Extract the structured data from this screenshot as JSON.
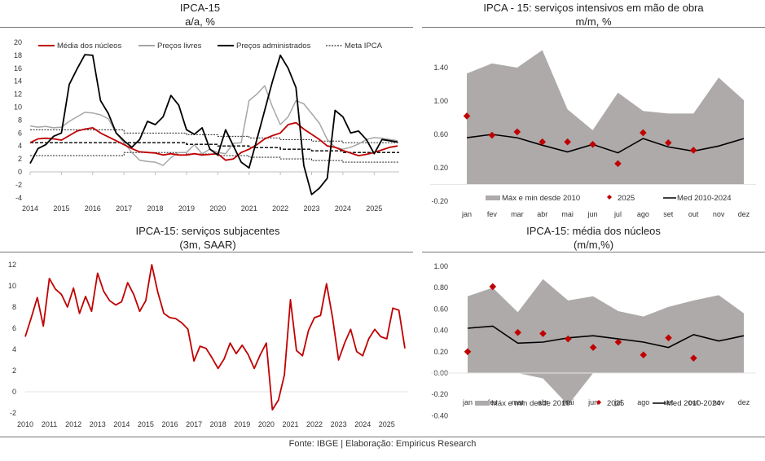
{
  "footer": "Fonte: IBGE | Elaboração: Empiricus Research",
  "colors": {
    "red": "#c00000",
    "gray_line": "#a6a6a6",
    "black": "#000000",
    "band": "#aeaaaa"
  },
  "chart_data": [
    {
      "id": "ipca15_aa",
      "type": "line",
      "title": "IPCA-15",
      "subtitle": "a/a, %",
      "xlabel": "",
      "ylabel": "",
      "ylim": [
        -4,
        20
      ],
      "yticks": [
        20,
        18,
        16,
        14,
        12,
        10,
        8,
        6,
        4,
        2,
        0,
        -2,
        -4
      ],
      "xlim": [
        2014,
        2025.8
      ],
      "xticks": [
        "2014",
        "2015",
        "2016",
        "2017",
        "2018",
        "2019",
        "2020",
        "2021",
        "2022",
        "2023",
        "2024",
        "2025"
      ],
      "legend_position": "top",
      "x": [
        2014.0,
        2014.25,
        2014.5,
        2014.75,
        2015.0,
        2015.25,
        2015.5,
        2015.75,
        2016.0,
        2016.25,
        2016.5,
        2016.75,
        2017.0,
        2017.25,
        2017.5,
        2017.75,
        2018.0,
        2018.25,
        2018.5,
        2018.75,
        2019.0,
        2019.25,
        2019.5,
        2019.75,
        2020.0,
        2020.25,
        2020.5,
        2020.75,
        2021.0,
        2021.25,
        2021.5,
        2021.75,
        2022.0,
        2022.25,
        2022.5,
        2022.75,
        2023.0,
        2023.25,
        2023.5,
        2023.75,
        2024.0,
        2024.25,
        2024.5,
        2024.75,
        2025.0,
        2025.25,
        2025.5,
        2025.75
      ],
      "series": [
        {
          "name": "Média dos núcleos",
          "style": "solid-red",
          "values": [
            4.5,
            5.1,
            5.2,
            5.1,
            4.9,
            5.6,
            6.3,
            6.6,
            6.8,
            6.0,
            5.4,
            4.8,
            4.2,
            3.6,
            3.1,
            3.0,
            2.9,
            2.6,
            2.8,
            2.6,
            2.6,
            2.8,
            2.6,
            2.7,
            2.8,
            1.8,
            2.0,
            3.0,
            3.5,
            4.2,
            5.1,
            5.6,
            6.0,
            7.3,
            7.6,
            6.6,
            5.8,
            5.0,
            4.0,
            3.8,
            3.3,
            2.9,
            2.5,
            2.7,
            3.0,
            3.4,
            3.8,
            4.0
          ]
        },
        {
          "name": "Preços livres",
          "style": "solid-gray",
          "values": [
            7.1,
            6.9,
            7.0,
            6.8,
            6.9,
            7.8,
            8.5,
            9.2,
            9.1,
            8.8,
            8.2,
            6.0,
            4.5,
            3.0,
            1.8,
            1.6,
            1.5,
            1.0,
            2.2,
            3.0,
            3.0,
            4.2,
            2.8,
            3.5,
            3.0,
            2.8,
            4.4,
            4.5,
            11.0,
            12.0,
            13.3,
            10.0,
            7.3,
            8.5,
            11.0,
            10.5,
            9.0,
            7.5,
            5.0,
            3.8,
            3.5,
            3.8,
            4.3,
            5.0,
            5.3,
            5.2,
            5.0,
            4.8
          ]
        },
        {
          "name": "Preços administrados",
          "style": "solid-black",
          "values": [
            1.3,
            3.6,
            4.2,
            5.5,
            6.0,
            13.5,
            15.9,
            18.1,
            18.0,
            11.0,
            9.0,
            6.0,
            4.8,
            3.8,
            5.0,
            7.8,
            7.3,
            8.5,
            11.8,
            10.3,
            6.5,
            5.8,
            6.8,
            3.5,
            2.6,
            6.5,
            4.0,
            1.5,
            0.6,
            5.0,
            9.5,
            14.0,
            18.0,
            16.0,
            13.0,
            1.0,
            -3.5,
            -2.5,
            -1.0,
            9.5,
            8.5,
            6.0,
            6.3,
            5.0,
            2.8,
            5.0,
            4.8,
            4.6
          ]
        },
        {
          "name": "Meta IPCA",
          "style": "dashed-black",
          "center": [
            4.5,
            4.5,
            4.5,
            4.5,
            4.5,
            4.25,
            4.0,
            3.75,
            3.5,
            3.25,
            3.0,
            3.0
          ],
          "upper": [
            6.5,
            6.5,
            6.5,
            6.0,
            6.0,
            5.75,
            5.5,
            5.25,
            5.0,
            4.75,
            4.5,
            4.5
          ],
          "lower": [
            2.5,
            2.5,
            2.5,
            3.0,
            3.0,
            2.75,
            2.5,
            2.25,
            2.0,
            1.75,
            1.5,
            1.5
          ],
          "years": [
            2014,
            2015,
            2016,
            2017,
            2018,
            2019,
            2020,
            2021,
            2022,
            2023,
            2024,
            2025
          ]
        }
      ]
    },
    {
      "id": "servicos_intensivos",
      "type": "area+scatter+line",
      "title": "IPCA - 15: serviços intensivos em mão de obra",
      "subtitle": "m/m, %",
      "ylim": [
        -0.2,
        1.6
      ],
      "yticks": [
        "1.40",
        "1.00",
        "0.60",
        "0.20",
        "-0.20"
      ],
      "ytick_values": [
        1.4,
        1.0,
        0.6,
        0.2,
        -0.2
      ],
      "categories": [
        "jan",
        "fev",
        "mar",
        "abr",
        "mai",
        "jun",
        "jul",
        "ago",
        "set",
        "out",
        "nov",
        "dez"
      ],
      "legend_position": "bottom",
      "series": [
        {
          "name": "Máx e min desde 2010",
          "kind": "band",
          "max": [
            1.33,
            1.45,
            1.4,
            1.61,
            0.9,
            0.65,
            1.1,
            0.88,
            0.85,
            0.85,
            1.28,
            1.01
          ],
          "min": [
            0.0,
            0.0,
            0.0,
            0.0,
            0.0,
            0.0,
            0.0,
            0.0,
            0.0,
            0.0,
            0.0,
            0.0
          ]
        },
        {
          "name": "2025",
          "kind": "scatter",
          "values": [
            0.82,
            0.59,
            0.63,
            0.51,
            0.51,
            0.48,
            0.25,
            0.62,
            0.5,
            0.41,
            null,
            null
          ]
        },
        {
          "name": "Med 2010-2024",
          "kind": "line",
          "values": [
            0.56,
            0.6,
            0.56,
            0.47,
            0.39,
            0.48,
            0.38,
            0.55,
            0.45,
            0.4,
            0.46,
            0.55
          ]
        }
      ]
    },
    {
      "id": "servicos_subjacentes",
      "type": "line",
      "title": "IPCA-15: serviços subjacentes",
      "subtitle": "(3m, SAAR)",
      "ylim": [
        -2,
        12
      ],
      "yticks": [
        12,
        10,
        8,
        6,
        4,
        2,
        0,
        -2
      ],
      "xticks": [
        "2010",
        "2011",
        "2012",
        "2013",
        "2014",
        "2015",
        "2016",
        "2017",
        "2018",
        "2019",
        "2020",
        "2021",
        "2022",
        "2023",
        "2024",
        "2025"
      ],
      "x": [
        2010.0,
        2010.25,
        2010.5,
        2010.75,
        2011.0,
        2011.25,
        2011.5,
        2011.75,
        2012.0,
        2012.25,
        2012.5,
        2012.75,
        2013.0,
        2013.25,
        2013.5,
        2013.75,
        2014.0,
        2014.25,
        2014.5,
        2014.75,
        2015.0,
        2015.25,
        2015.5,
        2015.75,
        2016.0,
        2016.25,
        2016.5,
        2016.75,
        2017.0,
        2017.25,
        2017.5,
        2017.75,
        2018.0,
        2018.25,
        2018.5,
        2018.75,
        2019.0,
        2019.25,
        2019.5,
        2019.75,
        2020.0,
        2020.25,
        2020.5,
        2020.75,
        2021.0,
        2021.25,
        2021.5,
        2021.75,
        2022.0,
        2022.25,
        2022.5,
        2022.75,
        2023.0,
        2023.25,
        2023.5,
        2023.75,
        2024.0,
        2024.25,
        2024.5,
        2024.75,
        2025.0,
        2025.25,
        2025.5,
        2025.75
      ],
      "series": [
        {
          "name": "Serviços subjacentes",
          "style": "solid-red",
          "values": [
            5.2,
            7.0,
            8.9,
            6.2,
            10.7,
            9.7,
            9.2,
            8.0,
            9.8,
            7.4,
            9.0,
            7.6,
            11.2,
            9.5,
            8.6,
            8.2,
            8.5,
            10.3,
            9.2,
            7.6,
            8.6,
            12.0,
            9.4,
            7.4,
            7.0,
            6.9,
            6.5,
            5.9,
            2.9,
            4.3,
            4.1,
            3.2,
            2.2,
            3.1,
            4.6,
            3.6,
            4.4,
            3.5,
            2.2,
            3.5,
            4.6,
            -1.7,
            -0.8,
            1.6,
            8.7,
            3.9,
            3.4,
            5.8,
            7.0,
            7.2,
            10.2,
            7.0,
            3.0,
            4.6,
            5.9,
            3.8,
            3.4,
            5.0,
            5.9,
            5.2,
            5.0,
            7.9,
            7.7,
            4.1
          ]
        }
      ]
    },
    {
      "id": "media_nucleos_mm",
      "type": "area+scatter+line",
      "title": "IPCA-15: média dos núcleos",
      "subtitle": "(m/m,%)",
      "ylim": [
        -0.4,
        1.0
      ],
      "yticks": [
        "1.00",
        "0.80",
        "0.60",
        "0.40",
        "0.20",
        "0.00",
        "-0.20",
        "-0.40"
      ],
      "ytick_values": [
        1.0,
        0.8,
        0.6,
        0.4,
        0.2,
        0.0,
        -0.2,
        -0.4
      ],
      "categories": [
        "jan",
        "fev",
        "mar",
        "abr",
        "mai",
        "jun",
        "jul",
        "ago",
        "set",
        "out",
        "nov",
        "dez"
      ],
      "legend_position": "bottom",
      "series": [
        {
          "name": "Máx e mín desde 2010",
          "kind": "band",
          "max": [
            0.72,
            0.8,
            0.57,
            0.88,
            0.68,
            0.72,
            0.58,
            0.53,
            0.62,
            0.68,
            0.73,
            0.56
          ],
          "min": [
            0.0,
            0.0,
            0.0,
            -0.05,
            -0.3,
            0.0,
            0.0,
            0.0,
            0.0,
            0.0,
            0.0,
            0.0
          ]
        },
        {
          "name": "2025",
          "kind": "scatter",
          "values": [
            0.2,
            0.81,
            0.38,
            0.37,
            0.32,
            0.24,
            0.29,
            0.17,
            0.33,
            0.14,
            null,
            null
          ]
        },
        {
          "name": "Med 2010-2024",
          "kind": "line",
          "values": [
            0.42,
            0.44,
            0.28,
            0.29,
            0.33,
            0.35,
            0.32,
            0.29,
            0.24,
            0.36,
            0.3,
            0.35
          ]
        }
      ]
    }
  ]
}
